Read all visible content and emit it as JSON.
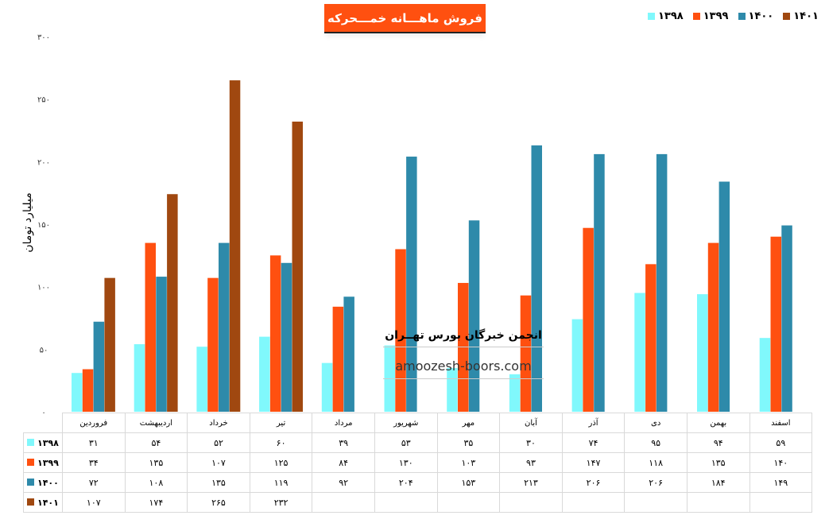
{
  "chart_data": {
    "type": "bar",
    "title": "فروش ماهـــانه خمـــحرکه",
    "ylabel": "میلیارد تومان",
    "xlabel": "",
    "ylim": [
      0,
      300
    ],
    "yticks": [
      "۰",
      "۵۰",
      "۱۰۰",
      "۱۵۰",
      "۲۰۰",
      "۲۵۰",
      "۳۰۰"
    ],
    "legend_position": "top-right",
    "categories": [
      "فروردین",
      "اردیبهشت",
      "خرداد",
      "تیر",
      "مرداد",
      "شهریور",
      "مهر",
      "آبان",
      "آذر",
      "دی",
      "بهمن",
      "اسفند"
    ],
    "series": [
      {
        "name": "۱۳۹۸",
        "color": "#80f8fc",
        "values": [
          31,
          54,
          52,
          60,
          39,
          53,
          35,
          30,
          74,
          95,
          94,
          59
        ]
      },
      {
        "name": "۱۳۹۹",
        "color": "#ff5010",
        "values": [
          34,
          135,
          107,
          125,
          84,
          130,
          103,
          93,
          147,
          118,
          135,
          140
        ]
      },
      {
        "name": "۱۴۰۰",
        "color": "#2e8aaa",
        "values": [
          72,
          108,
          135,
          119,
          92,
          204,
          153,
          213,
          206,
          206,
          184,
          149
        ]
      },
      {
        "name": "۱۴۰۱",
        "color": "#a04810",
        "values": [
          107,
          174,
          265,
          232,
          null,
          null,
          null,
          null,
          null,
          null,
          null,
          null
        ]
      }
    ]
  },
  "watermark": {
    "line1": "انجمن خبرگان بورس تهــران",
    "line2": "amoozesh-boors.com"
  }
}
